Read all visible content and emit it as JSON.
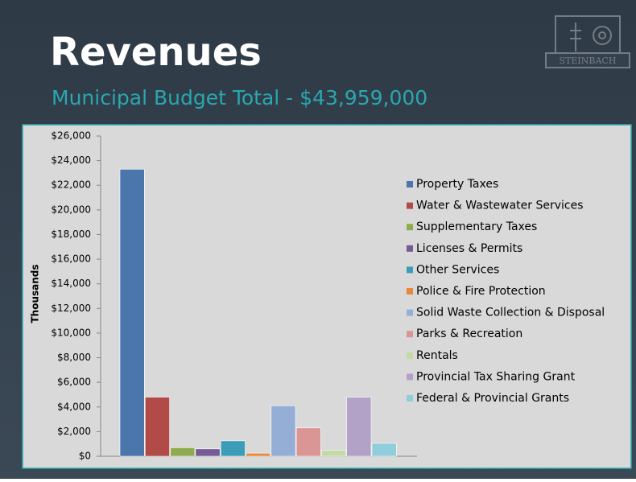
{
  "title": "Revenues",
  "subtitle": "Municipal Budget Total - $43,959,000",
  "logo": {
    "text": "STEINBACH"
  },
  "chart_data": {
    "type": "bar",
    "y_label": "Thousands",
    "categories": [
      null
    ],
    "series": [
      {
        "name": "Property Taxes",
        "color": "#4a76ac",
        "values": [
          23300
        ]
      },
      {
        "name": "Water & Wastewater Services",
        "color": "#b24a47",
        "values": [
          4800
        ]
      },
      {
        "name": "Supplementary Taxes",
        "color": "#8eac4f",
        "values": [
          700
        ]
      },
      {
        "name": "Licenses & Permits",
        "color": "#775b98",
        "values": [
          600
        ]
      },
      {
        "name": "Other Services",
        "color": "#3c9db8",
        "values": [
          1250
        ]
      },
      {
        "name": "Police & Fire Protection",
        "color": "#e8883a",
        "values": [
          250
        ]
      },
      {
        "name": "Solid Waste Collection & Disposal",
        "color": "#95aed6",
        "values": [
          4100
        ]
      },
      {
        "name": "Parks & Recreation",
        "color": "#d99694",
        "values": [
          2300
        ]
      },
      {
        "name": "Rentals",
        "color": "#c4d9a3",
        "values": [
          500
        ]
      },
      {
        "name": "Provincial Tax Sharing Grant",
        "color": "#b2a2c7",
        "values": [
          4800
        ]
      },
      {
        "name": "Federal & Provincial Grants",
        "color": "#92cddc",
        "values": [
          1050
        ]
      }
    ],
    "ylim": [
      0,
      26000
    ],
    "yticks": [
      {
        "value": 0,
        "label": "$0"
      },
      {
        "value": 2000,
        "label": "$2,000"
      },
      {
        "value": 4000,
        "label": "$4,000"
      },
      {
        "value": 6000,
        "label": "$6,000"
      },
      {
        "value": 8000,
        "label": "$8,000"
      },
      {
        "value": 10000,
        "label": "$10,000"
      },
      {
        "value": 12000,
        "label": "$12,000"
      },
      {
        "value": 14000,
        "label": "$14,000"
      },
      {
        "value": 16000,
        "label": "$16,000"
      },
      {
        "value": 18000,
        "label": "$18,000"
      },
      {
        "value": 20000,
        "label": "$20,000"
      },
      {
        "value": 22000,
        "label": "$22,000"
      },
      {
        "value": 24000,
        "label": "$24,000"
      },
      {
        "value": 26000,
        "label": "$26,000"
      }
    ],
    "legend": "right",
    "grid": false
  }
}
